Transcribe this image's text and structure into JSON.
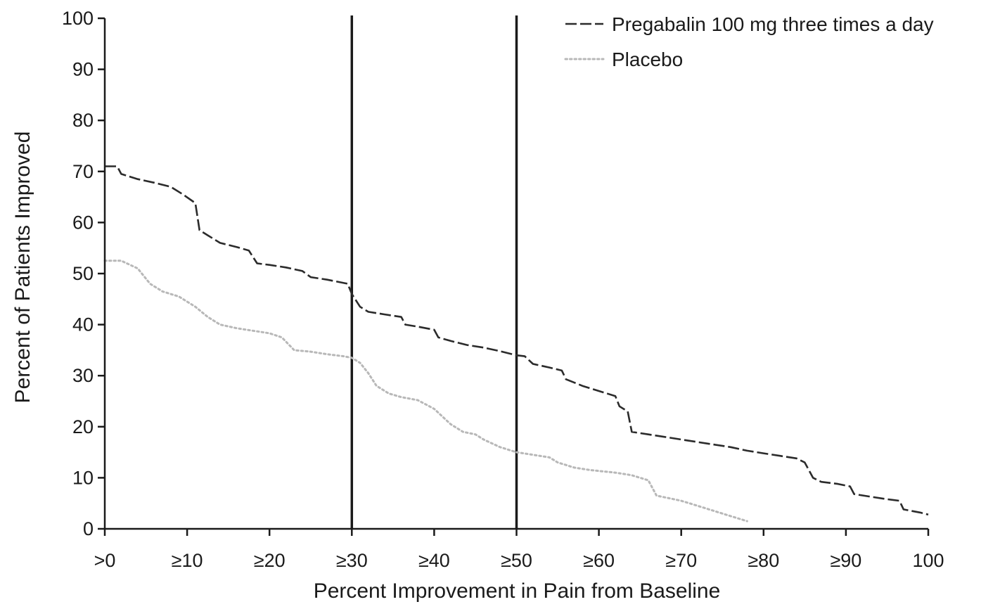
{
  "chart_data": {
    "type": "line",
    "title": "",
    "xlabel": "Percent Improvement in Pain from Baseline",
    "ylabel": "Percent of Patients Improved",
    "xlim": [
      0,
      100
    ],
    "ylim": [
      0,
      100
    ],
    "grid": false,
    "legend_position": "top-right",
    "x_ticks": [
      {
        "value": 0,
        "label": ">0"
      },
      {
        "value": 10,
        "label": "≥10"
      },
      {
        "value": 20,
        "label": "≥20"
      },
      {
        "value": 30,
        "label": "≥30"
      },
      {
        "value": 40,
        "label": "≥40"
      },
      {
        "value": 50,
        "label": "≥50"
      },
      {
        "value": 60,
        "label": "≥60"
      },
      {
        "value": 70,
        "label": "≥70"
      },
      {
        "value": 80,
        "label": "≥80"
      },
      {
        "value": 90,
        "label": "≥90"
      },
      {
        "value": 100,
        "label": "100"
      }
    ],
    "y_ticks": [
      {
        "value": 0,
        "label": "0"
      },
      {
        "value": 10,
        "label": "10"
      },
      {
        "value": 20,
        "label": "20"
      },
      {
        "value": 30,
        "label": "30"
      },
      {
        "value": 40,
        "label": "40"
      },
      {
        "value": 50,
        "label": "50"
      },
      {
        "value": 60,
        "label": "60"
      },
      {
        "value": 70,
        "label": "70"
      },
      {
        "value": 80,
        "label": "80"
      },
      {
        "value": 90,
        "label": "90"
      },
      {
        "value": 100,
        "label": "100"
      }
    ],
    "reference_lines_x": [
      30,
      50
    ],
    "series": [
      {
        "name": "Pregabalin 100 mg three times a day",
        "style": "dashed",
        "color": "#2b2b2b",
        "points": [
          [
            0,
            71
          ],
          [
            1.5,
            71
          ],
          [
            2,
            69.5
          ],
          [
            4,
            68.5
          ],
          [
            6,
            67.8
          ],
          [
            8,
            67
          ],
          [
            9.5,
            65.5
          ],
          [
            11,
            63.8
          ],
          [
            11.5,
            58.5
          ],
          [
            12.5,
            57.5
          ],
          [
            14,
            56
          ],
          [
            16,
            55.2
          ],
          [
            17.5,
            54.5
          ],
          [
            18.5,
            52
          ],
          [
            20,
            51.7
          ],
          [
            22,
            51.2
          ],
          [
            24,
            50.5
          ],
          [
            25,
            49.3
          ],
          [
            27,
            48.8
          ],
          [
            29.5,
            48
          ],
          [
            30,
            46
          ],
          [
            31,
            43.5
          ],
          [
            32,
            42.5
          ],
          [
            34,
            42
          ],
          [
            36,
            41.5
          ],
          [
            36.5,
            40
          ],
          [
            38,
            39.6
          ],
          [
            40,
            39
          ],
          [
            40.5,
            37.5
          ],
          [
            42,
            36.8
          ],
          [
            44,
            36
          ],
          [
            46,
            35.5
          ],
          [
            48,
            34.8
          ],
          [
            50,
            34
          ],
          [
            51,
            33.8
          ],
          [
            52,
            32.3
          ],
          [
            54,
            31.6
          ],
          [
            55.5,
            31
          ],
          [
            56,
            29.3
          ],
          [
            58,
            28
          ],
          [
            60,
            27
          ],
          [
            62,
            26
          ],
          [
            62.5,
            24
          ],
          [
            63.5,
            23
          ],
          [
            64,
            19
          ],
          [
            66,
            18.5
          ],
          [
            68,
            18
          ],
          [
            70,
            17.5
          ],
          [
            72,
            17
          ],
          [
            74,
            16.5
          ],
          [
            76,
            16
          ],
          [
            78,
            15.3
          ],
          [
            80,
            14.8
          ],
          [
            82,
            14.3
          ],
          [
            84,
            13.8
          ],
          [
            85,
            13
          ],
          [
            86,
            10
          ],
          [
            87,
            9.2
          ],
          [
            89,
            8.8
          ],
          [
            90.5,
            8.3
          ],
          [
            91,
            6.8
          ],
          [
            93,
            6.3
          ],
          [
            95,
            5.8
          ],
          [
            96.5,
            5.5
          ],
          [
            97,
            3.8
          ],
          [
            99,
            3.2
          ],
          [
            100,
            2.8
          ]
        ]
      },
      {
        "name": "Placebo",
        "style": "dotted",
        "color": "#b8b8b8",
        "points": [
          [
            0,
            52.5
          ],
          [
            2,
            52.5
          ],
          [
            4,
            51
          ],
          [
            5.5,
            48
          ],
          [
            7,
            46.5
          ],
          [
            9,
            45.5
          ],
          [
            11,
            43.5
          ],
          [
            12.5,
            41.5
          ],
          [
            14,
            40
          ],
          [
            16,
            39.3
          ],
          [
            18,
            38.8
          ],
          [
            20,
            38.3
          ],
          [
            21.5,
            37.5
          ],
          [
            23,
            35
          ],
          [
            25,
            34.7
          ],
          [
            27,
            34.2
          ],
          [
            29,
            33.8
          ],
          [
            30,
            33.5
          ],
          [
            31,
            32.5
          ],
          [
            32,
            30.5
          ],
          [
            33,
            28
          ],
          [
            34.5,
            26.5
          ],
          [
            36,
            25.8
          ],
          [
            38,
            25.2
          ],
          [
            40,
            23.5
          ],
          [
            41,
            22
          ],
          [
            42,
            20.5
          ],
          [
            43.5,
            19
          ],
          [
            45,
            18.5
          ],
          [
            46,
            17.5
          ],
          [
            48,
            16
          ],
          [
            50,
            15
          ],
          [
            52,
            14.5
          ],
          [
            54,
            14
          ],
          [
            55,
            13
          ],
          [
            57,
            12
          ],
          [
            59,
            11.5
          ],
          [
            62,
            11
          ],
          [
            64,
            10.5
          ],
          [
            66,
            9.5
          ],
          [
            67,
            6.5
          ],
          [
            68.5,
            6
          ],
          [
            70,
            5.5
          ],
          [
            72,
            4.5
          ],
          [
            74,
            3.5
          ],
          [
            76,
            2.5
          ],
          [
            77,
            2
          ],
          [
            78,
            1.5
          ]
        ]
      }
    ]
  }
}
